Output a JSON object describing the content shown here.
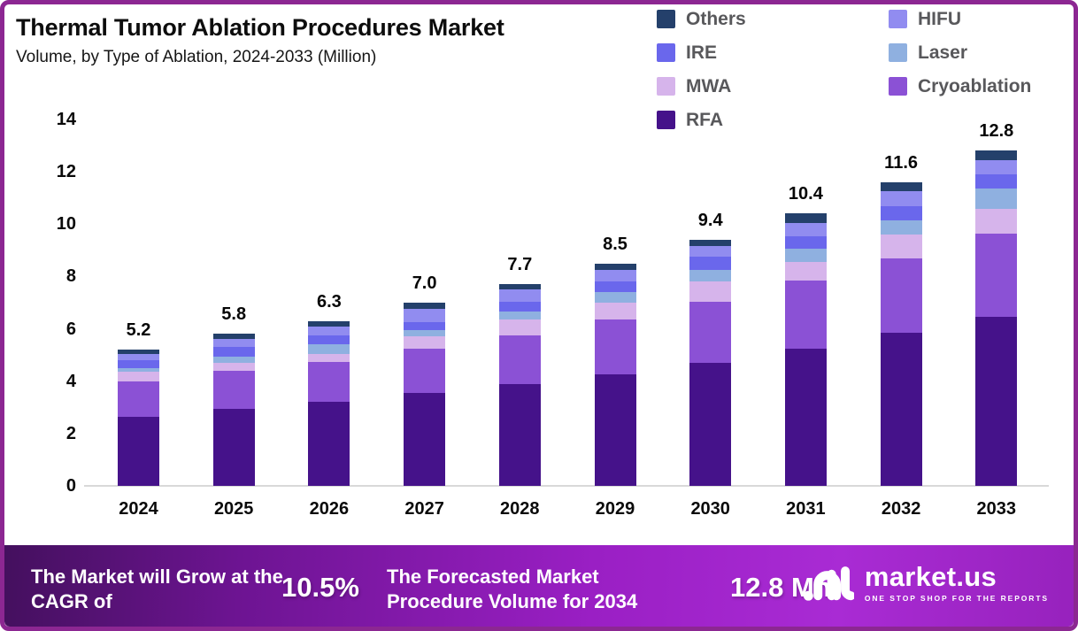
{
  "header": {
    "title": "Thermal Tumor Ablation Procedures Market",
    "subtitle": "Volume, by Type of Ablation, 2024-2033 (Million)"
  },
  "chart_data": {
    "type": "bar",
    "stacked": true,
    "title": "Thermal Tumor Ablation Procedures Market",
    "subtitle": "Volume, by Type of Ablation, 2024-2033 (Million)",
    "unit": "Million procedures",
    "categories": [
      "2024",
      "2025",
      "2026",
      "2027",
      "2028",
      "2029",
      "2030",
      "2031",
      "2032",
      "2033"
    ],
    "series": [
      {
        "name": "RFA",
        "color": "#45128A",
        "values": [
          2.65,
          2.95,
          3.2,
          3.55,
          3.9,
          4.25,
          4.7,
          5.25,
          5.85,
          6.45
        ]
      },
      {
        "name": "Cryoablation",
        "color": "#8B51D5",
        "values": [
          1.35,
          1.45,
          1.55,
          1.7,
          1.85,
          2.1,
          2.35,
          2.6,
          2.85,
          3.2
        ]
      },
      {
        "name": "MWA",
        "color": "#D6B4EB",
        "values": [
          0.35,
          0.3,
          0.3,
          0.45,
          0.6,
          0.65,
          0.75,
          0.7,
          0.9,
          0.95
        ]
      },
      {
        "name": "Laser",
        "color": "#8FB0E0",
        "values": [
          0.15,
          0.25,
          0.35,
          0.25,
          0.3,
          0.4,
          0.45,
          0.5,
          0.55,
          0.75
        ]
      },
      {
        "name": "IRE",
        "color": "#6A67EC",
        "values": [
          0.3,
          0.35,
          0.35,
          0.3,
          0.4,
          0.4,
          0.5,
          0.5,
          0.55,
          0.55
        ]
      },
      {
        "name": "HIFU",
        "color": "#918CF0",
        "values": [
          0.25,
          0.3,
          0.35,
          0.5,
          0.45,
          0.45,
          0.4,
          0.5,
          0.55,
          0.55
        ]
      },
      {
        "name": "Others",
        "color": "#24406B",
        "values": [
          0.15,
          0.2,
          0.2,
          0.25,
          0.2,
          0.25,
          0.25,
          0.35,
          0.35,
          0.35
        ]
      }
    ],
    "totals": [
      "5.2",
      "5.8",
      "6.3",
      "7.0",
      "7.7",
      "8.5",
      "9.4",
      "10.4",
      "11.6",
      "12.8"
    ],
    "ylim": [
      0,
      14
    ],
    "yticks": [
      0,
      2,
      4,
      6,
      8,
      10,
      12,
      14
    ],
    "grid": false,
    "legend_position": "top-right",
    "legend_order": [
      "Others",
      "HIFU",
      "IRE",
      "Laser",
      "MWA",
      "Cryoablation",
      "RFA"
    ]
  },
  "footer": {
    "cagr_label": "The Market will Grow at the CAGR of",
    "cagr_value": "10.5%",
    "forecast_label": "The Forecasted Market Procedure Volume for 2034",
    "forecast_value": "12.8 Mn",
    "brand_name": "market.us",
    "brand_tagline": "ONE STOP SHOP FOR THE REPORTS"
  },
  "colors": {
    "frame_border": "#8C2792",
    "banner_gradient_start": "#44105E",
    "banner_gradient_end": "#A92BD4",
    "baseline": "#D9D9D9"
  }
}
